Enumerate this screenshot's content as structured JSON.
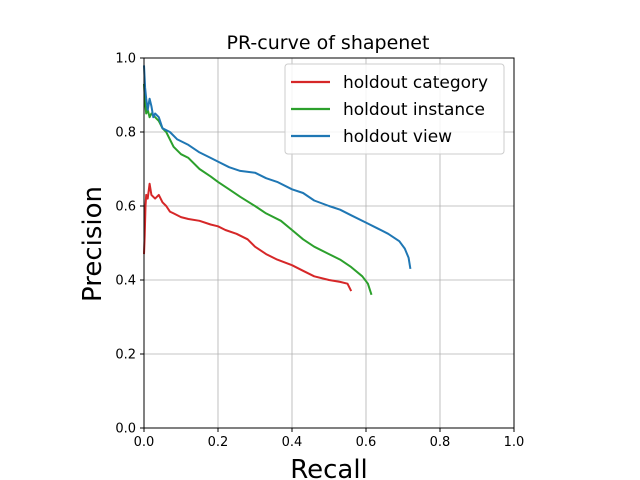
{
  "chart_data": {
    "type": "line",
    "title": "PR-curve of shapenet",
    "xlabel": "Recall",
    "ylabel": "Precision",
    "xlim": [
      0.0,
      1.0
    ],
    "ylim": [
      0.0,
      1.0
    ],
    "x_ticks": [
      "0.0",
      "0.2",
      "0.4",
      "0.6",
      "0.8",
      "1.0"
    ],
    "y_ticks": [
      "0.0",
      "0.2",
      "0.4",
      "0.6",
      "0.8",
      "1.0"
    ],
    "grid": true,
    "legend_position": "top-right",
    "series": [
      {
        "name": "holdout category",
        "color": "#d62728",
        "points": [
          [
            0.0,
            0.47
          ],
          [
            0.002,
            0.52
          ],
          [
            0.004,
            0.6
          ],
          [
            0.006,
            0.63
          ],
          [
            0.01,
            0.62
          ],
          [
            0.015,
            0.66
          ],
          [
            0.02,
            0.63
          ],
          [
            0.03,
            0.62
          ],
          [
            0.04,
            0.63
          ],
          [
            0.05,
            0.61
          ],
          [
            0.06,
            0.6
          ],
          [
            0.07,
            0.585
          ],
          [
            0.08,
            0.58
          ],
          [
            0.1,
            0.57
          ],
          [
            0.12,
            0.565
          ],
          [
            0.15,
            0.56
          ],
          [
            0.18,
            0.55
          ],
          [
            0.2,
            0.545
          ],
          [
            0.22,
            0.535
          ],
          [
            0.25,
            0.525
          ],
          [
            0.28,
            0.51
          ],
          [
            0.3,
            0.49
          ],
          [
            0.33,
            0.47
          ],
          [
            0.36,
            0.455
          ],
          [
            0.4,
            0.44
          ],
          [
            0.43,
            0.425
          ],
          [
            0.46,
            0.41
          ],
          [
            0.5,
            0.4
          ],
          [
            0.53,
            0.395
          ],
          [
            0.55,
            0.39
          ],
          [
            0.56,
            0.37
          ]
        ]
      },
      {
        "name": "holdout instance",
        "color": "#2ca02c",
        "points": [
          [
            0.0,
            0.93
          ],
          [
            0.003,
            0.88
          ],
          [
            0.006,
            0.85
          ],
          [
            0.01,
            0.86
          ],
          [
            0.015,
            0.84
          ],
          [
            0.02,
            0.85
          ],
          [
            0.03,
            0.84
          ],
          [
            0.04,
            0.83
          ],
          [
            0.05,
            0.81
          ],
          [
            0.06,
            0.8
          ],
          [
            0.08,
            0.76
          ],
          [
            0.1,
            0.74
          ],
          [
            0.12,
            0.73
          ],
          [
            0.15,
            0.7
          ],
          [
            0.18,
            0.68
          ],
          [
            0.2,
            0.665
          ],
          [
            0.23,
            0.645
          ],
          [
            0.26,
            0.625
          ],
          [
            0.3,
            0.6
          ],
          [
            0.33,
            0.58
          ],
          [
            0.37,
            0.56
          ],
          [
            0.4,
            0.535
          ],
          [
            0.43,
            0.51
          ],
          [
            0.46,
            0.49
          ],
          [
            0.5,
            0.47
          ],
          [
            0.53,
            0.455
          ],
          [
            0.56,
            0.435
          ],
          [
            0.59,
            0.41
          ],
          [
            0.605,
            0.39
          ],
          [
            0.615,
            0.36
          ]
        ]
      },
      {
        "name": "holdout view",
        "color": "#1f77b4",
        "points": [
          [
            0.0,
            0.98
          ],
          [
            0.003,
            0.92
          ],
          [
            0.006,
            0.89
          ],
          [
            0.01,
            0.86
          ],
          [
            0.015,
            0.89
          ],
          [
            0.02,
            0.87
          ],
          [
            0.025,
            0.84
          ],
          [
            0.03,
            0.85
          ],
          [
            0.04,
            0.84
          ],
          [
            0.05,
            0.81
          ],
          [
            0.07,
            0.8
          ],
          [
            0.09,
            0.78
          ],
          [
            0.12,
            0.765
          ],
          [
            0.15,
            0.745
          ],
          [
            0.18,
            0.73
          ],
          [
            0.2,
            0.72
          ],
          [
            0.23,
            0.705
          ],
          [
            0.26,
            0.695
          ],
          [
            0.3,
            0.69
          ],
          [
            0.33,
            0.675
          ],
          [
            0.36,
            0.665
          ],
          [
            0.4,
            0.645
          ],
          [
            0.43,
            0.635
          ],
          [
            0.46,
            0.615
          ],
          [
            0.5,
            0.6
          ],
          [
            0.53,
            0.59
          ],
          [
            0.56,
            0.575
          ],
          [
            0.6,
            0.555
          ],
          [
            0.63,
            0.54
          ],
          [
            0.66,
            0.525
          ],
          [
            0.69,
            0.505
          ],
          [
            0.705,
            0.485
          ],
          [
            0.715,
            0.46
          ],
          [
            0.72,
            0.43
          ]
        ]
      }
    ]
  }
}
